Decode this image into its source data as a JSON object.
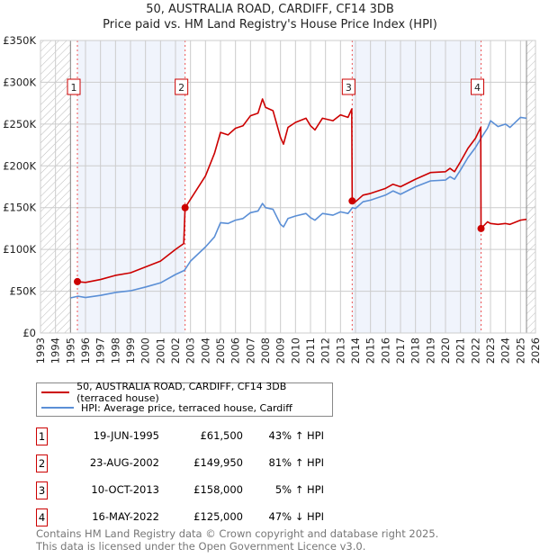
{
  "title": "50, AUSTRALIA ROAD, CARDIFF, CF14 3DB",
  "subtitle": "Price paid vs. HM Land Registry's House Price Index (HPI)",
  "colors": {
    "property": "#cc0000",
    "hpi": "#5b8fd6",
    "shade": "#f0f4fc",
    "grid": "#cccccc"
  },
  "chart_data": {
    "type": "line",
    "title": "50, AUSTRALIA ROAD, CARDIFF, CF14 3DB",
    "xlabel": "",
    "ylabel": "",
    "xlim": [
      1993,
      2026
    ],
    "ylim": [
      0,
      350000
    ],
    "yticks": [
      0,
      50000,
      100000,
      150000,
      200000,
      250000,
      300000,
      350000
    ],
    "ytick_labels": [
      "£0",
      "£50K",
      "£100K",
      "£150K",
      "£200K",
      "£250K",
      "£300K",
      "£350K"
    ],
    "xticks": [
      1993,
      1994,
      1995,
      1996,
      1997,
      1998,
      1999,
      2000,
      2001,
      2002,
      2003,
      2004,
      2005,
      2006,
      2007,
      2008,
      2009,
      2010,
      2011,
      2012,
      2013,
      2014,
      2015,
      2016,
      2017,
      2018,
      2019,
      2020,
      2021,
      2022,
      2023,
      2024,
      2025,
      2026
    ],
    "grid": true,
    "legend_position": "below",
    "hatched_ranges": [
      [
        1993,
        1995.0
      ],
      [
        2025.4,
        2026
      ]
    ],
    "series": [
      {
        "name": "50, AUSTRALIA ROAD, CARDIFF, CF14 3DB (terraced house)",
        "color": "#cc0000",
        "points": [
          [
            1995.46,
            61500
          ],
          [
            1996,
            60500
          ],
          [
            1997,
            64000
          ],
          [
            1998,
            69000
          ],
          [
            1999,
            72000
          ],
          [
            2000,
            79000
          ],
          [
            2001,
            86000
          ],
          [
            2002,
            100000
          ],
          [
            2002.55,
            107000
          ],
          [
            2002.64,
            149950
          ],
          [
            2003,
            160000
          ],
          [
            2004,
            188000
          ],
          [
            2004.6,
            215000
          ],
          [
            2005,
            240000
          ],
          [
            2005.5,
            237000
          ],
          [
            2006,
            245000
          ],
          [
            2006.5,
            248000
          ],
          [
            2007,
            260000
          ],
          [
            2007.5,
            263000
          ],
          [
            2007.8,
            280000
          ],
          [
            2008,
            270000
          ],
          [
            2008.5,
            266000
          ],
          [
            2009,
            234000
          ],
          [
            2009.2,
            226000
          ],
          [
            2009.5,
            246000
          ],
          [
            2010,
            252000
          ],
          [
            2010.7,
            257000
          ],
          [
            2011,
            248000
          ],
          [
            2011.3,
            243000
          ],
          [
            2011.8,
            257000
          ],
          [
            2012.5,
            254000
          ],
          [
            2013,
            261000
          ],
          [
            2013.5,
            258000
          ],
          [
            2013.75,
            268000
          ],
          [
            2013.78,
            158000
          ],
          [
            2014,
            157000
          ],
          [
            2014.5,
            165000
          ],
          [
            2015,
            167000
          ],
          [
            2016,
            173000
          ],
          [
            2016.5,
            178000
          ],
          [
            2017,
            175000
          ],
          [
            2018,
            184000
          ],
          [
            2019,
            192000
          ],
          [
            2020,
            193000
          ],
          [
            2020.3,
            197000
          ],
          [
            2020.6,
            193000
          ],
          [
            2021,
            205000
          ],
          [
            2021.5,
            221000
          ],
          [
            2022,
            233000
          ],
          [
            2022.35,
            246000
          ],
          [
            2022.37,
            125000
          ],
          [
            2022.8,
            133000
          ],
          [
            2023,
            131000
          ],
          [
            2023.5,
            130000
          ],
          [
            2024,
            131000
          ],
          [
            2024.3,
            130000
          ],
          [
            2025,
            135000
          ],
          [
            2025.4,
            136000
          ]
        ]
      },
      {
        "name": "HPI: Average price, terraced house, Cardiff",
        "color": "#5b8fd6",
        "points": [
          [
            1995.0,
            42000
          ],
          [
            1995.5,
            44000
          ],
          [
            1996,
            42500
          ],
          [
            1997,
            45000
          ],
          [
            1998,
            48500
          ],
          [
            1999,
            50500
          ],
          [
            2000,
            55000
          ],
          [
            2001,
            60000
          ],
          [
            2002,
            70000
          ],
          [
            2002.6,
            75000
          ],
          [
            2003,
            86000
          ],
          [
            2004,
            103000
          ],
          [
            2004.6,
            115000
          ],
          [
            2005,
            132000
          ],
          [
            2005.5,
            131000
          ],
          [
            2006,
            135000
          ],
          [
            2006.5,
            137000
          ],
          [
            2007,
            144000
          ],
          [
            2007.5,
            146000
          ],
          [
            2007.8,
            155000
          ],
          [
            2008,
            150000
          ],
          [
            2008.5,
            148000
          ],
          [
            2009,
            130000
          ],
          [
            2009.2,
            127000
          ],
          [
            2009.5,
            137000
          ],
          [
            2010,
            140000
          ],
          [
            2010.7,
            143000
          ],
          [
            2011,
            138000
          ],
          [
            2011.3,
            135000
          ],
          [
            2011.8,
            143000
          ],
          [
            2012.5,
            141000
          ],
          [
            2013,
            145000
          ],
          [
            2013.5,
            143000
          ],
          [
            2013.8,
            150000
          ],
          [
            2014,
            149000
          ],
          [
            2014.5,
            157000
          ],
          [
            2015,
            159000
          ],
          [
            2016,
            165000
          ],
          [
            2016.5,
            170000
          ],
          [
            2017,
            166000
          ],
          [
            2018,
            175000
          ],
          [
            2019,
            182000
          ],
          [
            2020,
            183000
          ],
          [
            2020.3,
            187000
          ],
          [
            2020.6,
            184000
          ],
          [
            2021,
            195000
          ],
          [
            2021.5,
            210000
          ],
          [
            2022,
            222000
          ],
          [
            2022.4,
            234000
          ],
          [
            2022.8,
            245000
          ],
          [
            2023,
            254000
          ],
          [
            2023.5,
            247000
          ],
          [
            2024,
            250000
          ],
          [
            2024.3,
            246000
          ],
          [
            2025,
            258000
          ],
          [
            2025.4,
            257000
          ]
        ]
      }
    ],
    "sales": [
      {
        "label": "1",
        "x": 1995.46,
        "y": 61500
      },
      {
        "label": "2",
        "x": 2002.64,
        "y": 149950
      },
      {
        "label": "3",
        "x": 2013.78,
        "y": 158000
      },
      {
        "label": "4",
        "x": 2022.37,
        "y": 125000
      }
    ]
  },
  "legend": {
    "property": "50, AUSTRALIA ROAD, CARDIFF, CF14 3DB (terraced house)",
    "hpi": "HPI: Average price, terraced house, Cardiff"
  },
  "transactions": [
    {
      "num": "1",
      "date": "19-JUN-1995",
      "price": "£61,500",
      "hpi": "43% ↑ HPI"
    },
    {
      "num": "2",
      "date": "23-AUG-2002",
      "price": "£149,950",
      "hpi": "81% ↑ HPI"
    },
    {
      "num": "3",
      "date": "10-OCT-2013",
      "price": "£158,000",
      "hpi": "5% ↑ HPI"
    },
    {
      "num": "4",
      "date": "16-MAY-2022",
      "price": "£125,000",
      "hpi": "47% ↓ HPI"
    }
  ],
  "footer": {
    "line1": "Contains HM Land Registry data © Crown copyright and database right 2025.",
    "line2": "This data is licensed under the Open Government Licence v3.0."
  }
}
